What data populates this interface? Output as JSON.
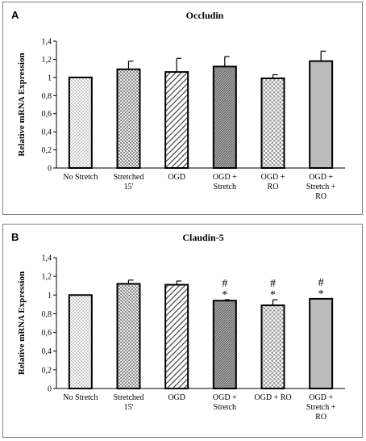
{
  "chart_data": [
    {
      "type": "bar",
      "panel_label": "A",
      "title": "Occludin",
      "ylabel": "Relative mRNA Expression",
      "ylim": [
        0,
        1.4
      ],
      "yticks": [
        "0",
        "0,2",
        "0,4",
        "0,6",
        "0,8",
        "1",
        "1,2",
        "1,4"
      ],
      "categories": [
        [
          "No Stretch"
        ],
        [
          "Stretched",
          "15'"
        ],
        [
          "OGD"
        ],
        [
          "OGD +",
          "Stretch"
        ],
        [
          "OGD +",
          "RO"
        ],
        [
          "OGD +",
          "Stretch +",
          "RO"
        ]
      ],
      "values": [
        1.0,
        1.09,
        1.06,
        1.12,
        0.99,
        1.18
      ],
      "errors": [
        0,
        0.09,
        0.15,
        0.11,
        0.04,
        0.11
      ],
      "markers": [
        [
          "",
          ""
        ],
        [
          "",
          ""
        ],
        [
          "",
          ""
        ],
        [
          "",
          ""
        ],
        [
          "",
          ""
        ],
        [
          "",
          ""
        ]
      ],
      "patterns": [
        "dots",
        "crosshatch",
        "diag",
        "dense",
        "checker",
        "vert"
      ]
    },
    {
      "type": "bar",
      "panel_label": "B",
      "title": "Claudin-5",
      "ylabel": "Relative mRNA Expression",
      "ylim": [
        0,
        1.4
      ],
      "yticks": [
        "0",
        "0,2",
        "0,4",
        "0,6",
        "0,8",
        "1",
        "1,2",
        "1,4"
      ],
      "categories": [
        [
          "No Stretch"
        ],
        [
          "Stretched",
          "15'"
        ],
        [
          "OGD"
        ],
        [
          "OGD +",
          "Stretch"
        ],
        [
          "OGD + RO"
        ],
        [
          "OGD +",
          "Stretch +",
          "RO"
        ]
      ],
      "values": [
        1.0,
        1.12,
        1.11,
        0.94,
        0.89,
        0.96
      ],
      "errors": [
        0,
        0.04,
        0.04,
        0.01,
        0.06,
        0
      ],
      "markers": [
        [
          "",
          ""
        ],
        [
          "",
          ""
        ],
        [
          "",
          ""
        ],
        [
          "#",
          "*"
        ],
        [
          "#",
          "*"
        ],
        [
          "#",
          "*"
        ]
      ],
      "patterns": [
        "dots",
        "crosshatch",
        "diag",
        "dense",
        "checker",
        "vert"
      ]
    }
  ]
}
